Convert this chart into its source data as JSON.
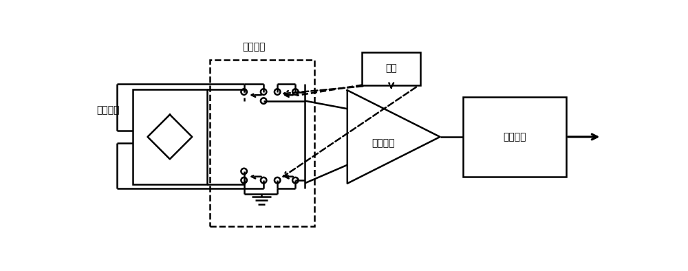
{
  "bg_color": "#ffffff",
  "line_color": "#000000",
  "label_hall": "震尔元件",
  "label_modulation": "调制电路",
  "label_clock": "时钟",
  "label_amp": "斬波运放",
  "label_filter": "滤波电路",
  "figsize": [
    10.0,
    3.94
  ],
  "dpi": 100
}
